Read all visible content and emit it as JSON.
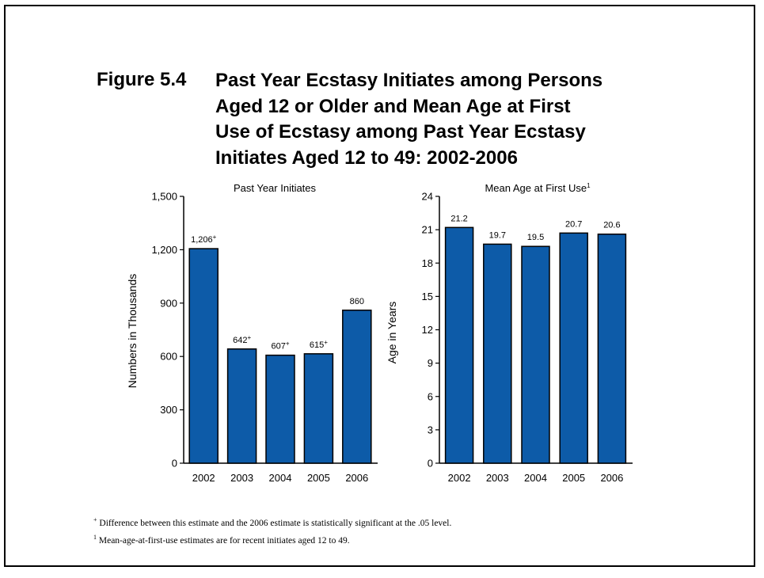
{
  "figure": {
    "label": "Figure 5.4",
    "title_lines": [
      "Past Year Ecstasy Initiates among Persons",
      "Aged 12 or Older and Mean Age at First",
      "Use of Ecstasy among Past Year Ecstasy",
      "Initiates Aged 12 to 49: 2002-2006"
    ]
  },
  "colors": {
    "bar": "#0d5ba8",
    "outline": "#000000"
  },
  "chart_data": [
    {
      "type": "bar",
      "title": "Past Year Initiates",
      "ylabel": "Numbers in Thousands",
      "xlabel": "",
      "categories": [
        "2002",
        "2003",
        "2004",
        "2005",
        "2006"
      ],
      "values": [
        1206,
        642,
        607,
        615,
        860
      ],
      "labels": [
        "1,206",
        "642",
        "607",
        "615",
        "860"
      ],
      "significant": [
        true,
        true,
        true,
        true,
        false
      ],
      "ylim": [
        0,
        1500
      ],
      "yticks": [
        0,
        300,
        600,
        900,
        1200,
        1500
      ],
      "ytick_labels": [
        "0",
        "300",
        "600",
        "900",
        "1,200",
        "1,500"
      ],
      "grid": false,
      "legend": "none"
    },
    {
      "type": "bar",
      "title": "Mean Age at First Use",
      "title_marker": "1",
      "ylabel": "Age in Years",
      "xlabel": "",
      "categories": [
        "2002",
        "2003",
        "2004",
        "2005",
        "2006"
      ],
      "values": [
        21.2,
        19.7,
        19.5,
        20.7,
        20.6
      ],
      "labels": [
        "21.2",
        "19.7",
        "19.5",
        "20.7",
        "20.6"
      ],
      "significant": [
        false,
        false,
        false,
        false,
        false
      ],
      "ylim": [
        0,
        24
      ],
      "yticks": [
        0,
        3,
        6,
        9,
        12,
        15,
        18,
        21,
        24
      ],
      "ytick_labels": [
        "0",
        "3",
        "6",
        "9",
        "12",
        "15",
        "18",
        "21",
        "24"
      ],
      "grid": false,
      "legend": "none"
    }
  ],
  "footnotes": [
    {
      "marker": "+",
      "text": "Difference between this estimate and the 2006 estimate is statistically significant at the .05 level."
    },
    {
      "marker": "1",
      "text": "Mean-age-at-first-use estimates are for recent initiates aged 12 to 49."
    }
  ],
  "significance_marker": "+"
}
